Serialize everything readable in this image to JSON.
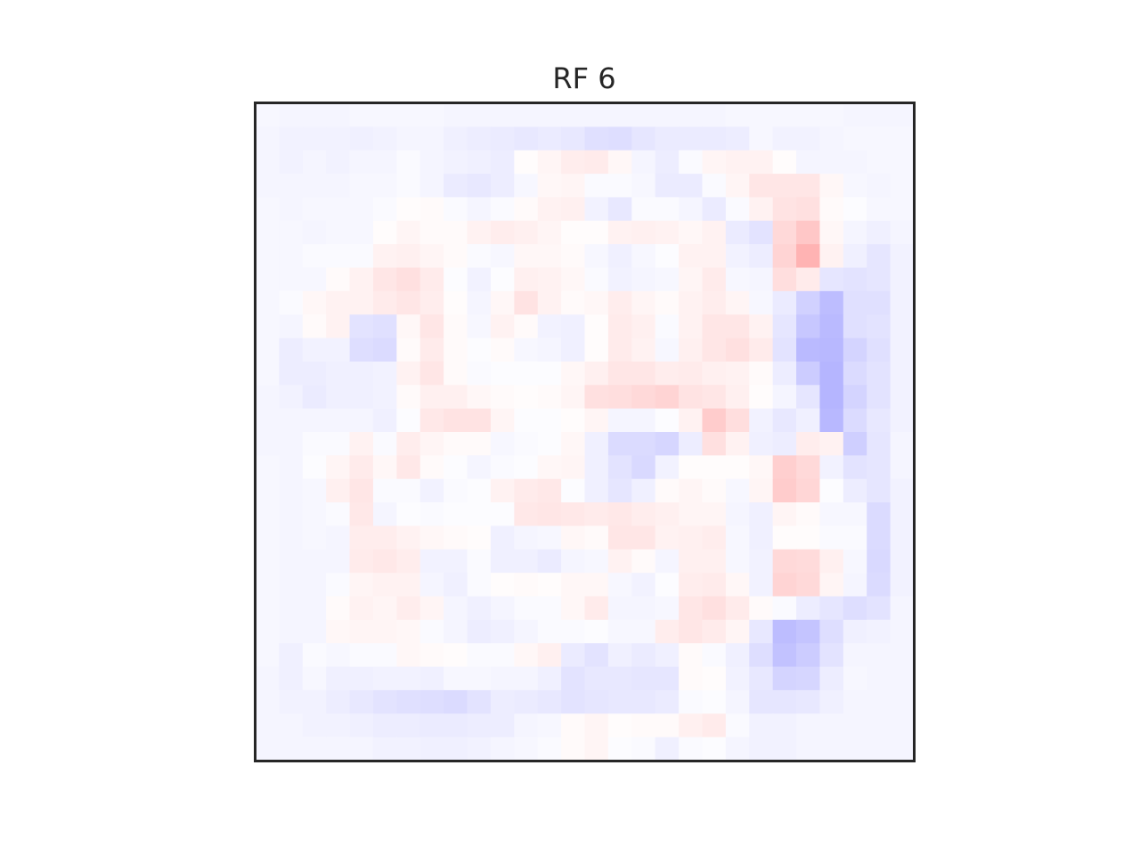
{
  "chart_data": {
    "type": "heatmap",
    "title": "RF 6",
    "xlabel": "",
    "ylabel": "",
    "colormap": "bwr",
    "vmin": -1.0,
    "vmax": 1.0,
    "grid": false,
    "axes_ticks": false,
    "colors": {
      "negative": "#0000ff",
      "zero": "#ffffff",
      "positive": "#ff0000",
      "frame": "#262626"
    },
    "rows": 28,
    "cols": 28,
    "values": [
      [
        -0.03,
        -0.04,
        -0.04,
        -0.04,
        -0.03,
        -0.03,
        -0.03,
        -0.03,
        -0.04,
        -0.04,
        -0.04,
        -0.04,
        -0.04,
        -0.04,
        -0.04,
        -0.04,
        -0.04,
        -0.04,
        -0.04,
        -0.04,
        -0.03,
        -0.03,
        -0.03,
        -0.03,
        -0.03,
        -0.04,
        -0.04,
        -0.04
      ],
      [
        -0.04,
        -0.05,
        -0.05,
        -0.05,
        -0.06,
        -0.05,
        -0.04,
        -0.04,
        -0.06,
        -0.07,
        -0.08,
        -0.09,
        -0.08,
        -0.09,
        -0.12,
        -0.13,
        -0.1,
        -0.08,
        -0.08,
        -0.08,
        -0.07,
        -0.03,
        -0.05,
        -0.05,
        -0.04,
        -0.03,
        -0.03,
        -0.03
      ],
      [
        -0.04,
        -0.05,
        -0.04,
        -0.05,
        -0.04,
        -0.04,
        -0.02,
        -0.04,
        -0.05,
        -0.06,
        -0.07,
        0.01,
        0.04,
        0.07,
        0.08,
        0.03,
        -0.04,
        -0.07,
        -0.02,
        0.04,
        0.05,
        0.05,
        0.01,
        -0.04,
        -0.04,
        -0.04,
        -0.03,
        -0.03
      ],
      [
        -0.04,
        -0.04,
        -0.04,
        -0.04,
        -0.03,
        -0.03,
        -0.02,
        -0.04,
        -0.08,
        -0.09,
        -0.07,
        -0.03,
        0.03,
        0.04,
        -0.02,
        -0.02,
        -0.03,
        -0.08,
        -0.08,
        -0.02,
        0.04,
        0.1,
        0.1,
        0.1,
        0.03,
        -0.03,
        -0.04,
        -0.03
      ],
      [
        -0.03,
        -0.04,
        -0.03,
        -0.03,
        -0.03,
        -0.02,
        0.01,
        0.02,
        -0.02,
        -0.04,
        -0.02,
        0.02,
        0.05,
        0.06,
        -0.05,
        -0.09,
        -0.02,
        -0.02,
        -0.04,
        -0.08,
        -0.02,
        0.05,
        0.11,
        0.12,
        0.02,
        -0.01,
        -0.03,
        -0.03
      ],
      [
        -0.03,
        -0.03,
        -0.04,
        -0.03,
        -0.03,
        0.01,
        0.04,
        0.02,
        0.02,
        0.05,
        0.07,
        0.06,
        0.04,
        0.01,
        0.01,
        0.05,
        0.06,
        0.05,
        0.03,
        0.05,
        -0.08,
        -0.11,
        0.15,
        0.22,
        0.03,
        -0.04,
        -0.06,
        -0.04
      ],
      [
        -0.03,
        -0.03,
        -0.02,
        -0.02,
        -0.02,
        0.05,
        0.06,
        0.04,
        0.02,
        -0.02,
        -0.03,
        0.03,
        0.03,
        0.02,
        -0.03,
        -0.06,
        -0.03,
        -0.01,
        0.05,
        0.05,
        -0.05,
        -0.07,
        0.17,
        0.3,
        0.05,
        -0.06,
        -0.1,
        -0.05
      ],
      [
        -0.03,
        -0.03,
        -0.03,
        0.02,
        0.05,
        0.1,
        0.12,
        0.08,
        -0.01,
        -0.05,
        -0.01,
        0.06,
        0.05,
        0.03,
        -0.02,
        -0.05,
        -0.04,
        -0.03,
        0.04,
        0.08,
        -0.03,
        -0.04,
        0.13,
        0.08,
        -0.1,
        -0.11,
        -0.1,
        -0.05
      ],
      [
        -0.03,
        -0.02,
        0.03,
        0.05,
        0.05,
        0.08,
        0.1,
        0.07,
        0.01,
        -0.04,
        0.03,
        0.11,
        0.05,
        0.02,
        0.03,
        0.07,
        0.04,
        0.02,
        0.05,
        0.07,
        0.04,
        -0.03,
        -0.08,
        -0.18,
        -0.26,
        -0.12,
        -0.12,
        -0.05
      ],
      [
        -0.03,
        -0.04,
        0.02,
        0.05,
        -0.11,
        -0.12,
        0.03,
        0.1,
        0.02,
        -0.03,
        0.05,
        0.02,
        -0.05,
        -0.06,
        0.01,
        0.08,
        0.06,
        -0.02,
        0.05,
        0.1,
        0.1,
        0.05,
        -0.1,
        -0.22,
        -0.27,
        -0.12,
        -0.11,
        -0.05
      ],
      [
        -0.03,
        -0.07,
        -0.05,
        -0.05,
        -0.13,
        -0.14,
        0.02,
        0.08,
        0.02,
        -0.01,
        0.02,
        -0.03,
        -0.04,
        -0.06,
        0.01,
        0.08,
        0.05,
        -0.03,
        0.06,
        0.1,
        0.12,
        0.08,
        -0.11,
        -0.27,
        -0.28,
        -0.17,
        -0.12,
        -0.05
      ],
      [
        -0.03,
        -0.07,
        -0.07,
        -0.06,
        -0.06,
        -0.05,
        0.05,
        0.1,
        0.02,
        -0.02,
        -0.01,
        -0.01,
        -0.01,
        0.03,
        0.06,
        0.1,
        0.1,
        0.07,
        0.08,
        0.06,
        0.05,
        0.02,
        -0.07,
        -0.2,
        -0.29,
        -0.14,
        -0.11,
        -0.05
      ],
      [
        -0.04,
        -0.05,
        -0.08,
        -0.06,
        -0.06,
        -0.05,
        0.02,
        0.06,
        0.06,
        0.03,
        0.02,
        0.01,
        0.02,
        0.04,
        0.12,
        0.13,
        0.15,
        0.17,
        0.11,
        0.1,
        0.06,
        0.01,
        -0.04,
        -0.1,
        -0.29,
        -0.17,
        -0.11,
        -0.05
      ],
      [
        -0.04,
        -0.04,
        -0.04,
        -0.04,
        -0.04,
        -0.06,
        -0.01,
        0.09,
        0.11,
        0.11,
        0.04,
        -0.01,
        -0.01,
        0.01,
        0.04,
        -0.04,
        -0.04,
        -0.01,
        0.05,
        0.2,
        0.13,
        -0.05,
        -0.09,
        -0.06,
        -0.28,
        -0.14,
        -0.09,
        -0.05
      ],
      [
        -0.04,
        -0.04,
        -0.02,
        -0.02,
        0.05,
        -0.02,
        0.07,
        0.04,
        0.02,
        0.02,
        -0.03,
        -0.02,
        -0.01,
        0.03,
        -0.06,
        -0.14,
        -0.14,
        -0.16,
        -0.07,
        0.12,
        0.05,
        -0.06,
        -0.07,
        0.07,
        0.05,
        -0.19,
        -0.1,
        -0.04
      ],
      [
        -0.03,
        -0.04,
        -0.01,
        0.04,
        0.08,
        0.03,
        0.09,
        0.02,
        -0.01,
        -0.04,
        -0.02,
        -0.01,
        0.03,
        0.04,
        -0.06,
        -0.11,
        -0.15,
        -0.05,
        0.01,
        0.01,
        0.01,
        0.03,
        0.19,
        0.15,
        -0.05,
        -0.11,
        -0.1,
        -0.04
      ],
      [
        -0.03,
        -0.04,
        -0.03,
        0.06,
        0.1,
        -0.02,
        -0.02,
        -0.05,
        -0.02,
        -0.01,
        0.05,
        0.08,
        0.09,
        -0.01,
        -0.06,
        -0.1,
        -0.06,
        0.02,
        0.04,
        0.02,
        -0.03,
        0.04,
        0.2,
        0.16,
        -0.01,
        -0.07,
        -0.1,
        -0.05
      ],
      [
        -0.03,
        -0.04,
        -0.03,
        -0.02,
        0.09,
        -0.04,
        -0.01,
        -0.02,
        -0.01,
        -0.01,
        -0.01,
        0.09,
        0.1,
        0.09,
        0.08,
        0.09,
        0.07,
        0.06,
        0.04,
        0.04,
        -0.04,
        -0.06,
        0.04,
        0.02,
        -0.03,
        -0.03,
        -0.14,
        -0.05
      ],
      [
        -0.03,
        -0.04,
        -0.03,
        -0.04,
        0.07,
        0.07,
        0.05,
        0.03,
        0.02,
        0.01,
        -0.06,
        -0.04,
        -0.03,
        0.03,
        0.02,
        0.1,
        0.1,
        0.05,
        0.06,
        0.07,
        -0.03,
        -0.06,
        0.01,
        0.01,
        -0.02,
        -0.02,
        -0.14,
        -0.05
      ],
      [
        -0.03,
        -0.04,
        -0.04,
        -0.04,
        0.08,
        0.09,
        0.07,
        -0.05,
        -0.05,
        -0.02,
        -0.06,
        -0.06,
        -0.08,
        -0.04,
        -0.03,
        0.05,
        0.02,
        -0.04,
        0.06,
        0.06,
        -0.03,
        -0.05,
        0.15,
        0.14,
        0.06,
        -0.03,
        -0.15,
        -0.05
      ],
      [
        -0.03,
        -0.04,
        -0.04,
        -0.02,
        0.04,
        0.05,
        0.05,
        -0.04,
        -0.06,
        -0.02,
        0.01,
        0.02,
        0.01,
        0.03,
        0.03,
        -0.03,
        -0.05,
        -0.01,
        0.07,
        0.08,
        0.03,
        -0.05,
        0.17,
        0.15,
        0.04,
        -0.04,
        -0.14,
        -0.05
      ],
      [
        -0.03,
        -0.04,
        -0.04,
        0.02,
        0.05,
        0.04,
        0.07,
        0.04,
        -0.04,
        -0.06,
        -0.04,
        -0.02,
        -0.02,
        0.03,
        0.08,
        -0.04,
        -0.04,
        -0.03,
        0.1,
        0.12,
        0.08,
        0.02,
        -0.02,
        -0.07,
        -0.1,
        -0.13,
        -0.11,
        -0.04
      ],
      [
        -0.03,
        -0.04,
        -0.04,
        0.03,
        0.04,
        0.04,
        0.03,
        -0.02,
        -0.04,
        -0.07,
        -0.06,
        -0.04,
        -0.02,
        -0.02,
        -0.01,
        -0.03,
        -0.03,
        0.07,
        0.1,
        0.08,
        0.04,
        -0.09,
        -0.26,
        -0.23,
        -0.13,
        -0.06,
        -0.05,
        -0.04
      ],
      [
        -0.03,
        -0.06,
        -0.02,
        -0.03,
        -0.02,
        -0.02,
        0.03,
        0.02,
        0.01,
        -0.02,
        -0.02,
        0.03,
        0.06,
        -0.08,
        -0.11,
        -0.06,
        -0.08,
        -0.06,
        0.02,
        -0.02,
        -0.06,
        -0.13,
        -0.24,
        -0.2,
        -0.11,
        -0.04,
        -0.04,
        -0.04
      ],
      [
        -0.04,
        -0.06,
        -0.03,
        -0.06,
        -0.06,
        -0.05,
        -0.05,
        -0.06,
        -0.03,
        -0.03,
        -0.04,
        -0.04,
        -0.06,
        -0.11,
        -0.09,
        -0.09,
        -0.1,
        -0.1,
        0.02,
        0.01,
        -0.05,
        -0.09,
        -0.17,
        -0.16,
        -0.07,
        -0.03,
        -0.04,
        -0.04
      ],
      [
        -0.04,
        -0.05,
        -0.05,
        -0.07,
        -0.09,
        -0.11,
        -0.12,
        -0.13,
        -0.14,
        -0.11,
        -0.07,
        -0.08,
        -0.09,
        -0.11,
        -0.1,
        -0.09,
        -0.09,
        -0.08,
        -0.02,
        -0.01,
        -0.04,
        -0.1,
        -0.1,
        -0.09,
        -0.06,
        -0.04,
        -0.04,
        -0.04
      ],
      [
        -0.04,
        -0.04,
        -0.05,
        -0.05,
        -0.06,
        -0.07,
        -0.07,
        -0.08,
        -0.08,
        -0.07,
        -0.07,
        -0.04,
        -0.03,
        0.02,
        0.04,
        0.01,
        0.02,
        0.02,
        0.06,
        0.08,
        -0.02,
        -0.05,
        -0.05,
        -0.04,
        -0.04,
        -0.04,
        -0.04,
        -0.04
      ],
      [
        -0.04,
        -0.04,
        -0.04,
        -0.04,
        -0.04,
        -0.05,
        -0.05,
        -0.06,
        -0.06,
        -0.05,
        -0.04,
        -0.03,
        -0.02,
        0.02,
        0.04,
        -0.01,
        -0.02,
        -0.06,
        -0.02,
        -0.01,
        -0.04,
        -0.05,
        -0.05,
        -0.04,
        -0.04,
        -0.04,
        -0.04,
        -0.04
      ]
    ]
  }
}
